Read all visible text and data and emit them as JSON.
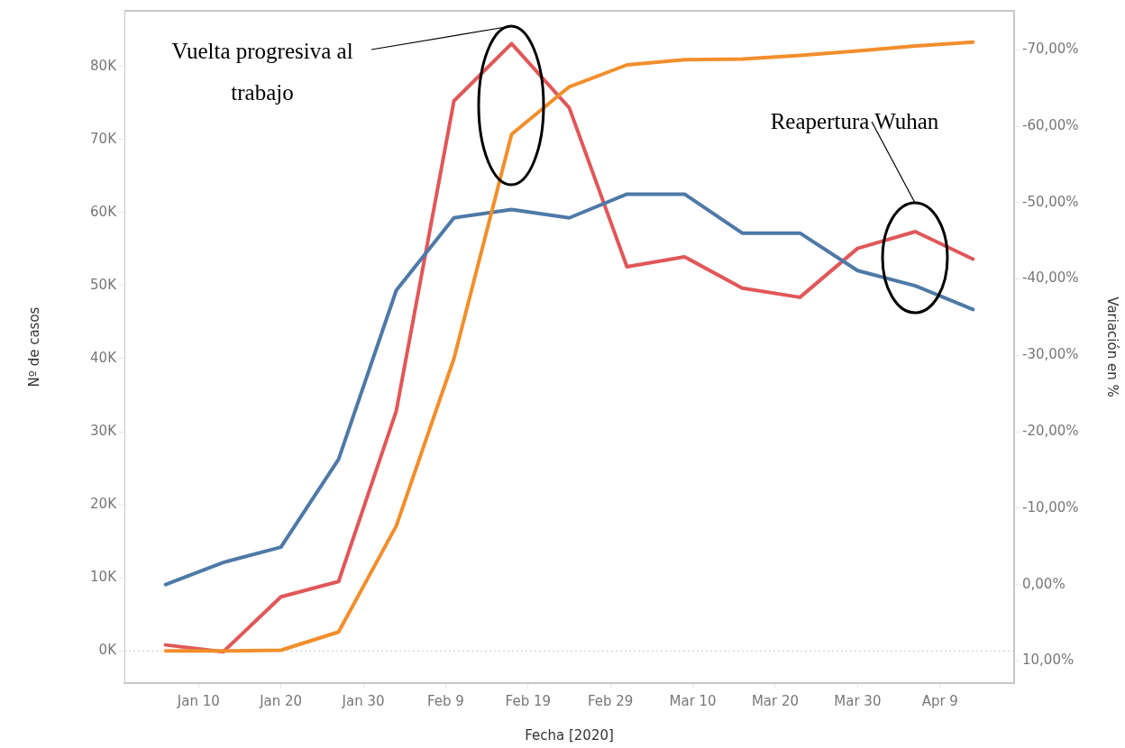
{
  "chart_data": {
    "type": "line",
    "xlabel": "Fecha [2020]",
    "ylabel": "Nº de casos",
    "y2label": "Variación en %",
    "x": [
      "2020-01-06",
      "2020-01-13",
      "2020-01-20",
      "2020-01-27",
      "2020-02-03",
      "2020-02-10",
      "2020-02-17",
      "2020-02-24",
      "2020-03-02",
      "2020-03-09",
      "2020-03-16",
      "2020-03-23",
      "2020-03-30",
      "2020-04-06",
      "2020-04-13"
    ],
    "series": [
      {
        "color": "#f28e2b",
        "values": [
          0,
          0,
          100,
          2600,
          17100,
          40000,
          70700,
          77200,
          80200,
          80900,
          81000,
          81500,
          82100,
          82800,
          83300
        ]
      },
      {
        "color": "#4e79a7",
        "axis": "y2",
        "values": [
          0,
          -2.9,
          -4.9,
          -16.4,
          -38.5,
          -48.0,
          -49.1,
          -48.0,
          -51.1,
          -51.1,
          -46.0,
          -46.0,
          -41.1,
          -39.1,
          -36.0
        ]
      },
      {
        "color": "#e15759",
        "axis": "y2",
        "values": [
          7.9,
          8.8,
          1.6,
          -0.4,
          -22.7,
          -63.3,
          -70.8,
          -62.4,
          -41.6,
          -42.9,
          -38.8,
          -37.6,
          -44.0,
          -46.2,
          -42.6
        ]
      }
    ],
    "xlim": [
      "2020-01-01",
      "2020-04-18"
    ],
    "xticks": [
      {
        "value": "2020-01-10",
        "label": "Jan 10"
      },
      {
        "value": "2020-01-20",
        "label": "Jan 20"
      },
      {
        "value": "2020-01-30",
        "label": "Jan 30"
      },
      {
        "value": "2020-02-09",
        "label": "Feb 9"
      },
      {
        "value": "2020-02-19",
        "label": "Feb 19"
      },
      {
        "value": "2020-02-29",
        "label": "Feb 29"
      },
      {
        "value": "2020-03-10",
        "label": "Mar 10"
      },
      {
        "value": "2020-03-20",
        "label": "Mar 20"
      },
      {
        "value": "2020-03-30",
        "label": "Mar 30"
      },
      {
        "value": "2020-04-09",
        "label": "Apr 9"
      }
    ],
    "ylim": [
      -4400,
      87600
    ],
    "yticks": [
      {
        "value": 0,
        "label": "0K"
      },
      {
        "value": 10000,
        "label": "10K"
      },
      {
        "value": 20000,
        "label": "20K"
      },
      {
        "value": 30000,
        "label": "30K"
      },
      {
        "value": 40000,
        "label": "40K"
      },
      {
        "value": 50000,
        "label": "50K"
      },
      {
        "value": 60000,
        "label": "60K"
      },
      {
        "value": 70000,
        "label": "70K"
      },
      {
        "value": 80000,
        "label": "80K"
      }
    ],
    "y2lim": [
      12.9,
      -75.1
    ],
    "y2ticks": [
      {
        "value": 10,
        "label": "10,00%"
      },
      {
        "value": 0,
        "label": "0,00%"
      },
      {
        "value": -10,
        "label": "-10,00%"
      },
      {
        "value": -20,
        "label": "-20,00%"
      },
      {
        "value": -30,
        "label": "-30,00%"
      },
      {
        "value": -40,
        "label": "-40,00%"
      },
      {
        "value": -50,
        "label": "-50,00%"
      },
      {
        "value": -60,
        "label": "-60,00%"
      },
      {
        "value": -70,
        "label": "-70,00%"
      }
    ],
    "ref_lines": [
      {
        "axis": "y",
        "value": 0,
        "color": "#c8c8c8",
        "line_style": "dotted"
      }
    ],
    "annotations": [
      "Vuelta progresiva al trabajo",
      "Reapertura Wuhan"
    ],
    "grid": false,
    "legend": false,
    "marker": "none",
    "line_style": "solid"
  }
}
